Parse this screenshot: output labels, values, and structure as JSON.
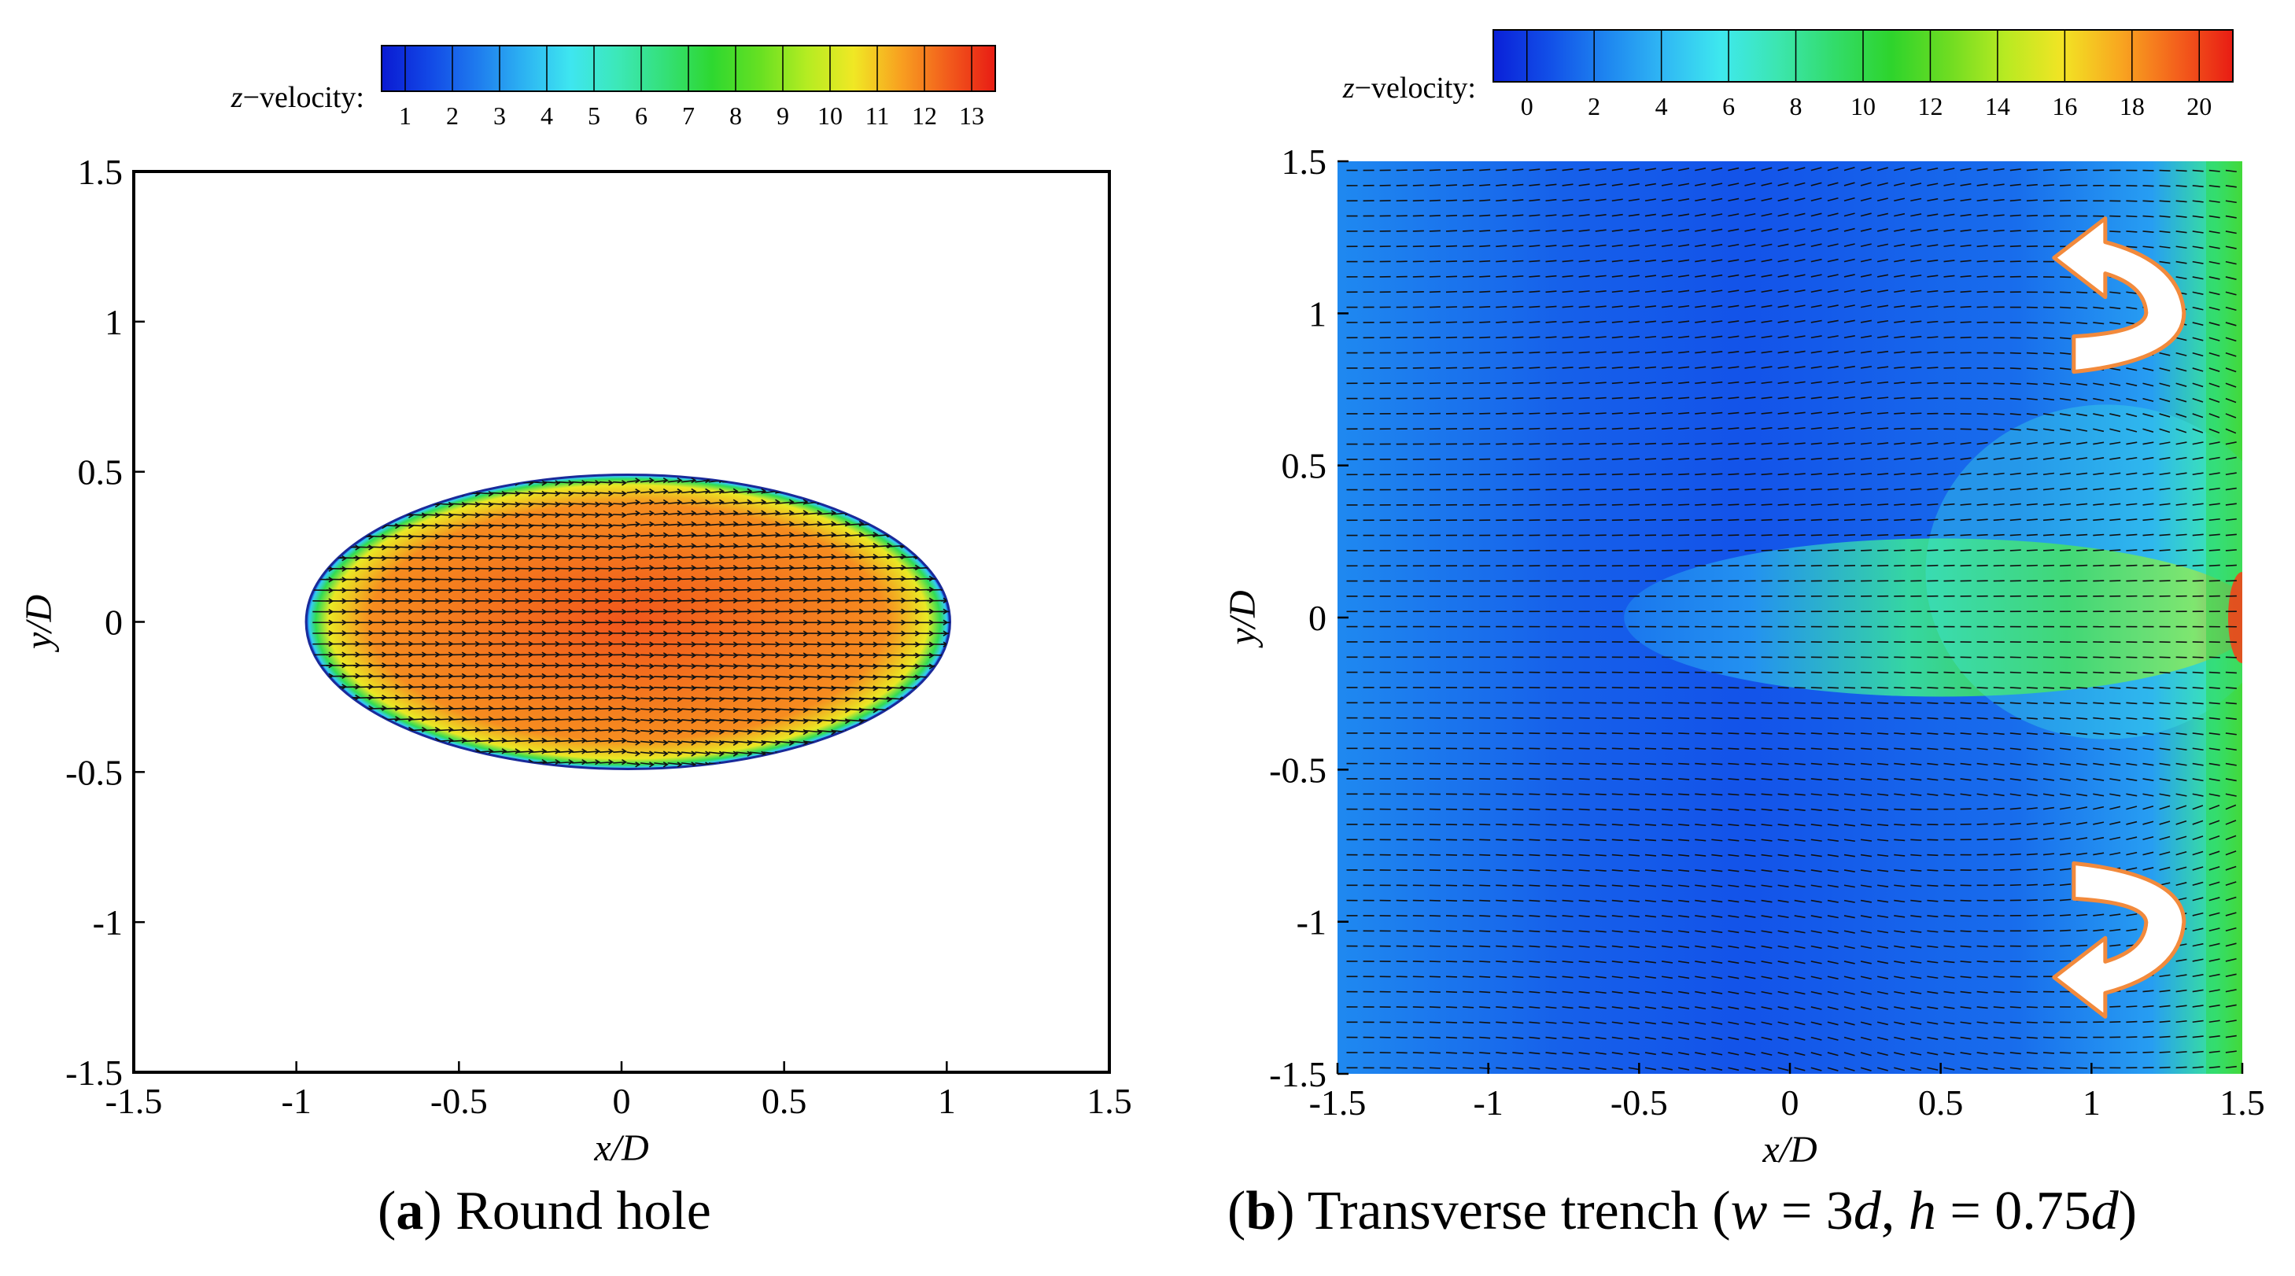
{
  "chart_data": [
    {
      "type": "heatmap",
      "panel_label": "a",
      "caption": "Round hole",
      "xlabel": "x/D",
      "ylabel": "y/D",
      "xlim": [
        -1.5,
        1.5
      ],
      "ylim": [
        -1.5,
        1.5
      ],
      "x_ticks": [
        -1.5,
        -1,
        -0.5,
        0,
        0.5,
        1,
        1.5
      ],
      "y_ticks": [
        -1.5,
        -1,
        -0.5,
        0,
        0.5,
        1,
        1.5
      ],
      "x_tick_labels": [
        "-1.5",
        "-1",
        "-0.5",
        "0",
        "0.5",
        "1",
        "1.5"
      ],
      "y_tick_labels": [
        "-1.5",
        "-1",
        "-0.5",
        "0",
        "0.5",
        "1",
        "1.5"
      ],
      "colorbar": {
        "label_var": "z",
        "label_rest": "−velocity:",
        "ticks": [
          1,
          2,
          3,
          4,
          5,
          6,
          7,
          8,
          9,
          10,
          11,
          12,
          13
        ],
        "tick_labels": [
          "1",
          "2",
          "3",
          "4",
          "5",
          "6",
          "7",
          "8",
          "9",
          "10",
          "11",
          "12",
          "13"
        ],
        "range": [
          0.5,
          13.5
        ],
        "colors": [
          "#0a1ad2",
          "#1248e6",
          "#1e7aee",
          "#2cb2f2",
          "#3ee6f0",
          "#3ce8b8",
          "#34e078",
          "#2ed830",
          "#66e022",
          "#b4ec22",
          "#f0e824",
          "#f8a020",
          "#f25c1c",
          "#e81c14"
        ]
      },
      "jet_region": {
        "shape": "ellipse",
        "center": [
          0.02,
          0
        ],
        "semi_axes": [
          0.99,
          0.49
        ],
        "core_value": 12.6,
        "edge_value": 1
      },
      "vectors": "velocity field arrows inside the ellipse"
    },
    {
      "type": "heatmap",
      "panel_label": "b",
      "caption_main": "Transverse trench (",
      "caption_w": "w",
      "caption_w_eq": " = 3",
      "caption_d1": "d",
      "caption_sep": ", ",
      "caption_h": "h",
      "caption_h_eq": " = 0.75",
      "caption_d2": "d",
      "caption_close": ")",
      "xlabel": "x/D",
      "ylabel": "y/D",
      "xlim": [
        -1.5,
        1.5
      ],
      "ylim": [
        -1.5,
        1.5
      ],
      "x_ticks": [
        -1.5,
        -1,
        -0.5,
        0,
        0.5,
        1,
        1.5
      ],
      "y_ticks": [
        -1.5,
        -1,
        -0.5,
        0,
        0.5,
        1,
        1.5
      ],
      "x_tick_labels": [
        "-1.5",
        "-1",
        "-0.5",
        "0",
        "0.5",
        "1",
        "1.5"
      ],
      "y_tick_labels": [
        "-1.5",
        "-1",
        "-0.5",
        "0",
        "0.5",
        "1",
        "1.5"
      ],
      "colorbar": {
        "label_var": "z",
        "label_rest": "−velocity:",
        "ticks": [
          0,
          2,
          4,
          6,
          8,
          10,
          12,
          14,
          16,
          18,
          20
        ],
        "tick_labels": [
          "0",
          "2",
          "4",
          "6",
          "8",
          "10",
          "12",
          "14",
          "16",
          "18",
          "20"
        ],
        "range": [
          -1,
          21
        ],
        "colors": [
          "#0a20d8",
          "#1250e8",
          "#1e86f0",
          "#30b8f4",
          "#3ee8ee",
          "#3ce6b0",
          "#32dc6a",
          "#2ed42c",
          "#6edc22",
          "#b8ea22",
          "#f2e424",
          "#f8a820",
          "#f4621c",
          "#e81c14"
        ]
      },
      "annotations": [
        "upper curved arrow (outward to +y)",
        "lower curved arrow (outward to -y)"
      ],
      "vectors": "velocity field arrows over full domain"
    }
  ]
}
